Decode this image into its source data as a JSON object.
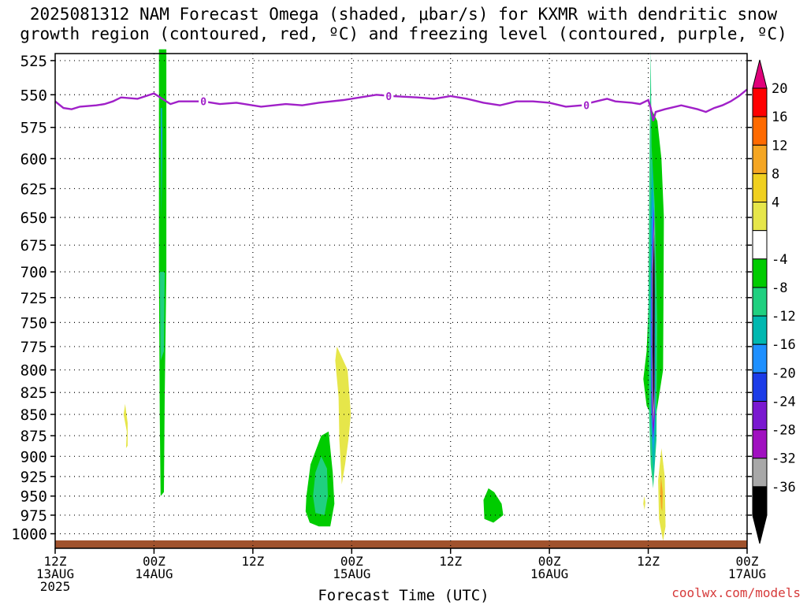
{
  "chart_data": {
    "type": "contour",
    "title_line1": "2025081312 NAM Forecast Omega (shaded, μbar/s) for KXMR with dendritic snow",
    "title_line2": "growth region (contoured, red, ºC) and freezing level (contoured, purple, ºC)",
    "xlabel": "Forecast Time (UTC)",
    "xlim_hours": [
      0,
      84
    ],
    "x_ticks": [
      {
        "hour": 0,
        "label": "12Z",
        "sub": "13AUG",
        "sub2": "2025"
      },
      {
        "hour": 12,
        "label": "00Z",
        "sub": "14AUG",
        "sub2": ""
      },
      {
        "hour": 24,
        "label": "12Z",
        "sub": "",
        "sub2": ""
      },
      {
        "hour": 36,
        "label": "00Z",
        "sub": "15AUG",
        "sub2": ""
      },
      {
        "hour": 48,
        "label": "12Z",
        "sub": "",
        "sub2": ""
      },
      {
        "hour": 60,
        "label": "00Z",
        "sub": "16AUG",
        "sub2": ""
      },
      {
        "hour": 72,
        "label": "12Z",
        "sub": "",
        "sub2": ""
      },
      {
        "hour": 84,
        "label": "00Z",
        "sub": "17AUG",
        "sub2": ""
      }
    ],
    "y_axis": {
      "label": "",
      "scale": "log-pressure",
      "ylim_hpa": [
        520,
        1020
      ]
    },
    "y_ticks": [
      525,
      550,
      575,
      600,
      625,
      650,
      675,
      700,
      725,
      750,
      775,
      800,
      825,
      850,
      875,
      900,
      925,
      950,
      975,
      1000
    ],
    "grid": true,
    "colorbar": {
      "placement": "right",
      "levels": [
        20,
        16,
        12,
        8,
        4,
        -4,
        -8,
        -12,
        -16,
        -20,
        -24,
        -28,
        -32,
        -36
      ],
      "colors": [
        "#ff0000",
        "#ff6a00",
        "#f5a623",
        "#f0d020",
        "#e6e64a",
        "#ffffff",
        "#00cc00",
        "#20d080",
        "#00b8b0",
        "#1e90ff",
        "#1c3ce8",
        "#7a18d0",
        "#a010c0",
        "#a8a8a8",
        "#000000"
      ],
      "top_cap": "#e0007a",
      "bottom_cap": "#000000"
    },
    "freezing_level": {
      "label": "0",
      "color": "#a020c8",
      "points": [
        [
          0,
          555
        ],
        [
          1,
          560
        ],
        [
          2,
          561
        ],
        [
          3,
          559
        ],
        [
          5,
          558
        ],
        [
          6,
          557
        ],
        [
          7,
          555
        ],
        [
          8,
          552
        ],
        [
          10,
          553
        ],
        [
          12,
          549
        ],
        [
          13,
          553
        ],
        [
          14,
          557
        ],
        [
          15,
          555
        ],
        [
          18,
          555
        ],
        [
          20,
          557
        ],
        [
          22,
          556
        ],
        [
          25,
          559
        ],
        [
          28,
          557
        ],
        [
          30,
          558
        ],
        [
          32,
          556
        ],
        [
          35,
          554
        ],
        [
          37,
          552
        ],
        [
          39,
          550
        ],
        [
          41,
          551
        ],
        [
          44,
          552
        ],
        [
          46,
          553
        ],
        [
          48,
          551
        ],
        [
          50,
          553
        ],
        [
          52,
          556
        ],
        [
          54,
          558
        ],
        [
          56,
          555
        ],
        [
          58,
          555
        ],
        [
          60,
          556
        ],
        [
          62,
          559
        ],
        [
          64,
          558
        ],
        [
          65,
          556
        ],
        [
          67,
          553
        ],
        [
          68,
          555
        ],
        [
          70,
          556
        ],
        [
          71,
          557
        ],
        [
          72,
          554
        ],
        [
          72.3,
          560
        ],
        [
          72.6,
          570
        ],
        [
          72.9,
          563
        ],
        [
          74,
          561
        ],
        [
          76,
          558
        ],
        [
          78,
          561
        ],
        [
          79,
          563
        ],
        [
          80,
          560
        ],
        [
          81,
          558
        ],
        [
          82,
          555
        ],
        [
          83,
          551
        ],
        [
          84,
          546
        ]
      ]
    },
    "omega_regions": [
      {
        "name": "column-14aug",
        "color": "#00cc00",
        "points": [
          [
            12.6,
            517
          ],
          [
            12.6,
            700
          ],
          [
            12.7,
            850
          ],
          [
            12.8,
            950
          ],
          [
            13.2,
            945
          ],
          [
            13.3,
            830
          ],
          [
            13.5,
            700
          ],
          [
            13.5,
            517
          ]
        ]
      },
      {
        "name": "column-14aug-cyan",
        "color": "#00b8b0",
        "points": [
          [
            12.8,
            560
          ],
          [
            12.9,
            650
          ],
          [
            13,
            600
          ],
          [
            13,
            560
          ]
        ]
      },
      {
        "name": "column-14aug-blue",
        "color": "#1e90ff",
        "points": [
          [
            12.9,
            575
          ],
          [
            12.95,
            600
          ],
          [
            13.02,
            575
          ]
        ]
      },
      {
        "name": "gray-small-14aug",
        "color": "#20d080",
        "points": [
          [
            12.7,
            700
          ],
          [
            12.8,
            790
          ],
          [
            13.2,
            780
          ],
          [
            13.3,
            700
          ]
        ]
      },
      {
        "name": "yellow-13aug",
        "color": "#e6e64a",
        "points": [
          [
            8.7,
            870
          ],
          [
            8.3,
            850
          ],
          [
            8.5,
            838
          ],
          [
            8.8,
            860
          ],
          [
            8.8,
            887
          ],
          [
            8.6,
            890
          ]
        ]
      },
      {
        "name": "yellow-14aug-late",
        "color": "#e6e64a",
        "points": [
          [
            34.2,
            775
          ],
          [
            35.5,
            800
          ],
          [
            35.9,
            850
          ],
          [
            35.6,
            880
          ],
          [
            35.2,
            910
          ],
          [
            34.8,
            935
          ],
          [
            34.5,
            880
          ],
          [
            34.4,
            830
          ],
          [
            34.0,
            790
          ]
        ]
      },
      {
        "name": "green-14aug-late",
        "color": "#00cc00",
        "points": [
          [
            30.5,
            950
          ],
          [
            31,
            910
          ],
          [
            32.3,
            875
          ],
          [
            33.2,
            870
          ],
          [
            33.7,
            920
          ],
          [
            33.9,
            960
          ],
          [
            33.4,
            990
          ],
          [
            32,
            990
          ],
          [
            30.9,
            985
          ],
          [
            30.4,
            970
          ]
        ]
      },
      {
        "name": "teal-14aug-late",
        "color": "#20d080",
        "points": [
          [
            31.3,
            950
          ],
          [
            31.6,
            920
          ],
          [
            32.3,
            900
          ],
          [
            33,
            915
          ],
          [
            33.1,
            950
          ],
          [
            32.7,
            975
          ],
          [
            31.6,
            972
          ]
        ]
      },
      {
        "name": "green-15aug",
        "color": "#00cc00",
        "points": [
          [
            52,
            955
          ],
          [
            52.6,
            940
          ],
          [
            53.3,
            945
          ],
          [
            54.2,
            960
          ],
          [
            54.4,
            975
          ],
          [
            53.2,
            985
          ],
          [
            52.1,
            980
          ]
        ]
      },
      {
        "name": "green-16aug-column",
        "color": "#00cc00",
        "points": [
          [
            72.3,
            517
          ],
          [
            72.3,
            560
          ],
          [
            73.1,
            570
          ],
          [
            73.6,
            600
          ],
          [
            73.9,
            650
          ],
          [
            73.8,
            800
          ],
          [
            72.8,
            860
          ],
          [
            71.8,
            840
          ],
          [
            71.4,
            810
          ],
          [
            71.8,
            780
          ],
          [
            72.2,
            700
          ],
          [
            72.3,
            560
          ]
        ]
      },
      {
        "name": "teal-16aug",
        "color": "#20d080",
        "points": [
          [
            72.3,
            517
          ],
          [
            72.4,
            590
          ],
          [
            72.8,
            640
          ],
          [
            73.1,
            750
          ],
          [
            73,
            880
          ],
          [
            72.6,
            940
          ],
          [
            72.3,
            910
          ],
          [
            72.1,
            850
          ],
          [
            72.0,
            760
          ],
          [
            72.1,
            640
          ],
          [
            72.2,
            560
          ]
        ]
      },
      {
        "name": "cyan-16aug",
        "color": "#00b8b0",
        "points": [
          [
            72.5,
            600
          ],
          [
            72.7,
            650
          ],
          [
            72.9,
            760
          ],
          [
            72.9,
            870
          ],
          [
            72.7,
            925
          ],
          [
            72.5,
            900
          ],
          [
            72.3,
            840
          ],
          [
            72.2,
            730
          ],
          [
            72.3,
            640
          ]
        ]
      },
      {
        "name": "blue-16aug",
        "color": "#1e90ff",
        "points": [
          [
            72.6,
            625
          ],
          [
            72.8,
            700
          ],
          [
            72.8,
            860
          ],
          [
            72.6,
            895
          ],
          [
            72.4,
            860
          ],
          [
            72.3,
            760
          ],
          [
            72.4,
            660
          ]
        ]
      },
      {
        "name": "purple-16aug",
        "color": "#7a18d0",
        "points": [
          [
            72.7,
            640
          ],
          [
            72.8,
            700
          ],
          [
            72.8,
            850
          ],
          [
            72.6,
            880
          ],
          [
            72.4,
            840
          ],
          [
            72.4,
            700
          ]
        ]
      },
      {
        "name": "gray-16aug",
        "color": "#a8a8a8",
        "points": [
          [
            72.75,
            650
          ],
          [
            72.8,
            720
          ],
          [
            72.75,
            840
          ],
          [
            72.6,
            860
          ],
          [
            72.5,
            800
          ],
          [
            72.5,
            700
          ]
        ]
      },
      {
        "name": "black-16aug",
        "color": "#000000",
        "points": [
          [
            72.72,
            665
          ],
          [
            72.78,
            720
          ],
          [
            72.73,
            820
          ],
          [
            72.63,
            845
          ],
          [
            72.55,
            780
          ],
          [
            72.58,
            700
          ]
        ]
      },
      {
        "name": "yellow-16aug-low",
        "color": "#e6e64a",
        "points": [
          [
            73.6,
            890
          ],
          [
            74.0,
            925
          ],
          [
            74.1,
            990
          ],
          [
            73.8,
            1010
          ],
          [
            73.3,
            980
          ],
          [
            73.2,
            930
          ]
        ]
      },
      {
        "name": "orange-16aug-low",
        "color": "#f5a623",
        "points": [
          [
            73.55,
            925
          ],
          [
            73.75,
            945
          ],
          [
            73.7,
            970
          ],
          [
            73.55,
            965
          ],
          [
            73.45,
            945
          ]
        ]
      },
      {
        "name": "yellow-16aug-dot",
        "color": "#e6e64a",
        "points": [
          [
            71.5,
            950
          ],
          [
            71.65,
            958
          ],
          [
            71.55,
            968
          ],
          [
            71.4,
            960
          ]
        ]
      }
    ]
  },
  "credit": "coolwx.com/models"
}
